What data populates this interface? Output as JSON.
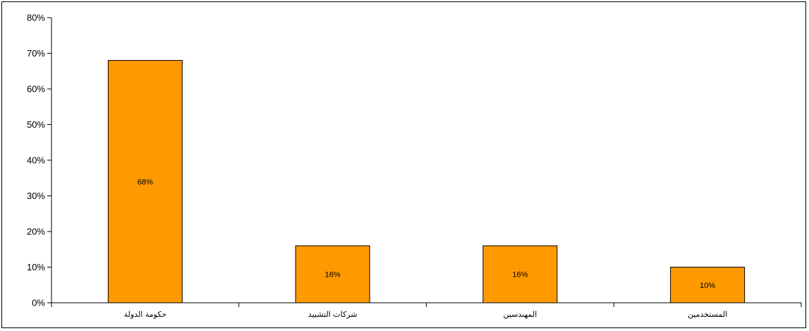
{
  "chart_data": {
    "type": "bar",
    "categories": [
      "حكومة الدولة",
      "شركات التشييد",
      "المهندسين",
      "المستخدمين"
    ],
    "values": [
      68,
      16,
      16,
      10
    ],
    "data_labels": [
      "68%",
      "16%",
      "16%",
      "10%"
    ],
    "y_ticks": [
      "0%",
      "10%",
      "20%",
      "30%",
      "40%",
      "50%",
      "60%",
      "70%",
      "80%"
    ],
    "ylim": [
      0,
      80
    ],
    "grid": false,
    "bar_color": "#FF9900",
    "bar_stroke": "#000000",
    "title": "",
    "xlabel": "",
    "ylabel": ""
  }
}
